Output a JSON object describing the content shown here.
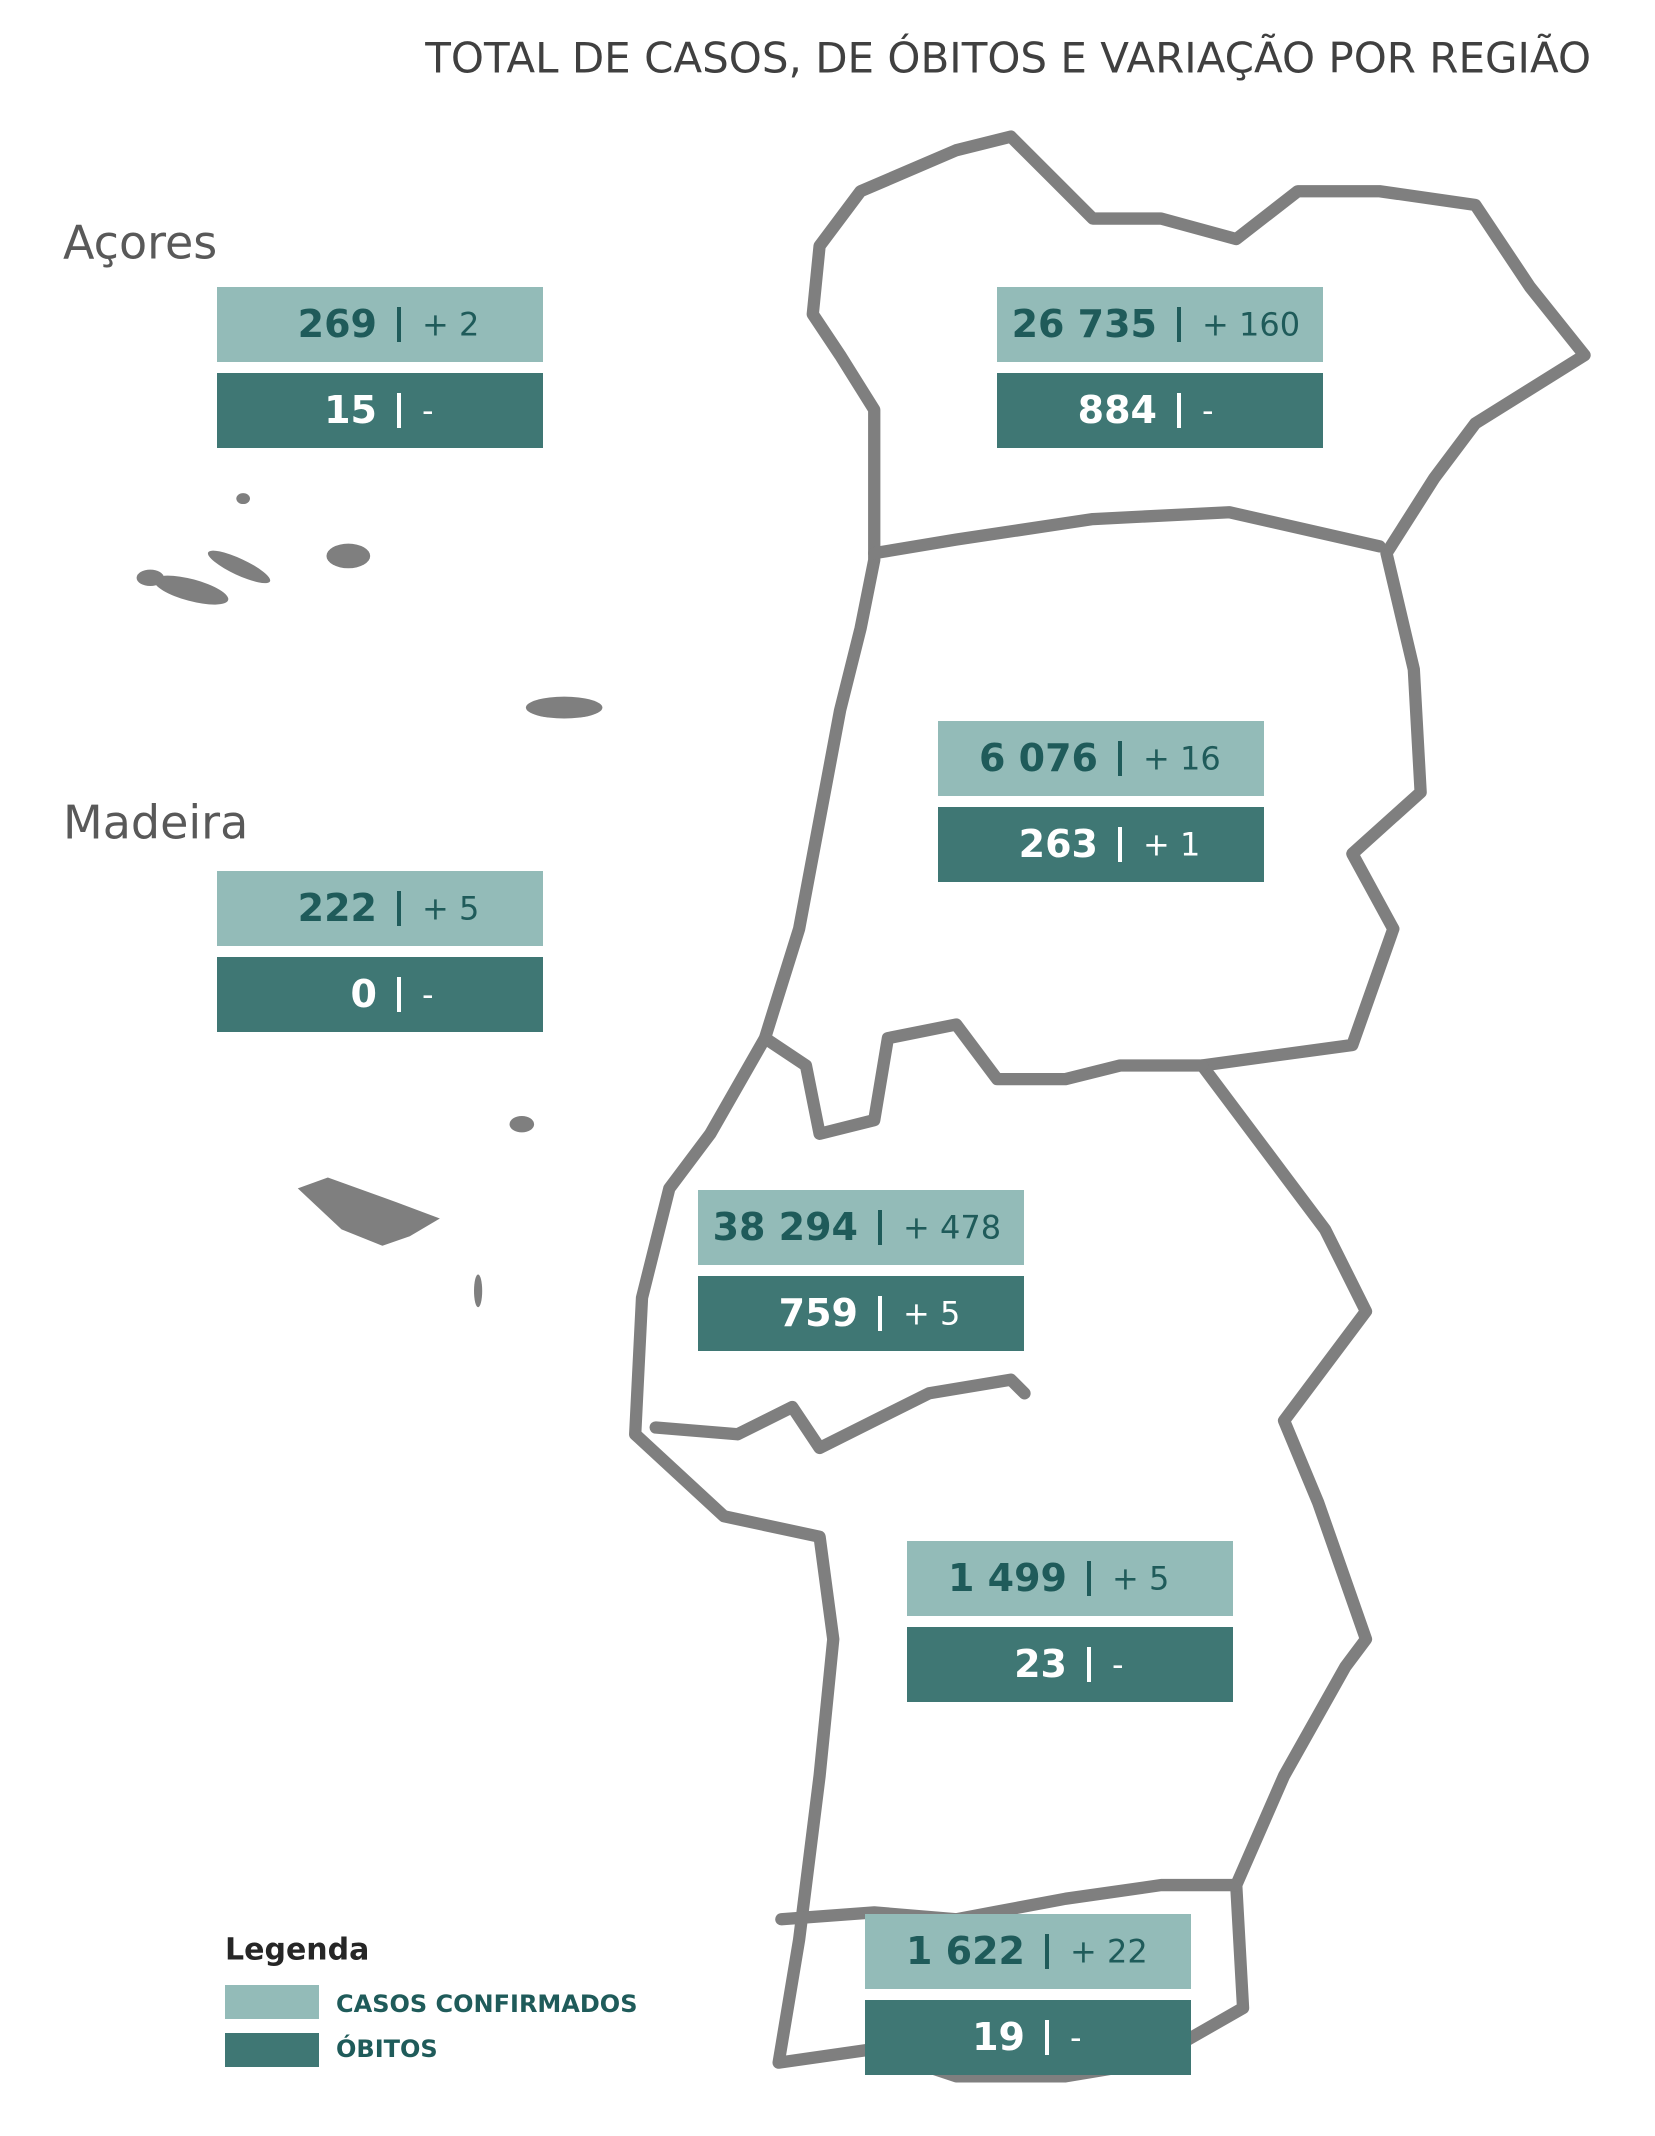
{
  "header": {
    "title": "TOTAL DE CASOS, DE ÓBITOS  E VARIAÇÃO POR REGIÃO"
  },
  "island_labels": [
    "Açores",
    "Madeira"
  ],
  "regions": [
    {
      "cases": "269",
      "cases_change": "+ 2",
      "deaths": "15",
      "deaths_change": "-"
    },
    {
      "cases": "26 735",
      "cases_change": "+ 160",
      "deaths": "884",
      "deaths_change": "-"
    },
    {
      "cases": "6 076",
      "cases_change": "+ 16",
      "deaths": "263",
      "deaths_change": "+ 1"
    },
    {
      "cases": "222",
      "cases_change": "+ 5",
      "deaths": "0",
      "deaths_change": "-"
    },
    {
      "cases": "38 294",
      "cases_change": "+ 478",
      "deaths": "759",
      "deaths_change": "+ 5"
    },
    {
      "cases": "1 499",
      "cases_change": "+ 5",
      "deaths": "23",
      "deaths_change": "-"
    },
    {
      "cases": "1 622",
      "cases_change": "+ 22",
      "deaths": "19",
      "deaths_change": "-"
    }
  ],
  "legend": {
    "title": "Legenda",
    "items": [
      "CASOS CONFIRMADOS",
      "ÓBITOS"
    ]
  }
}
